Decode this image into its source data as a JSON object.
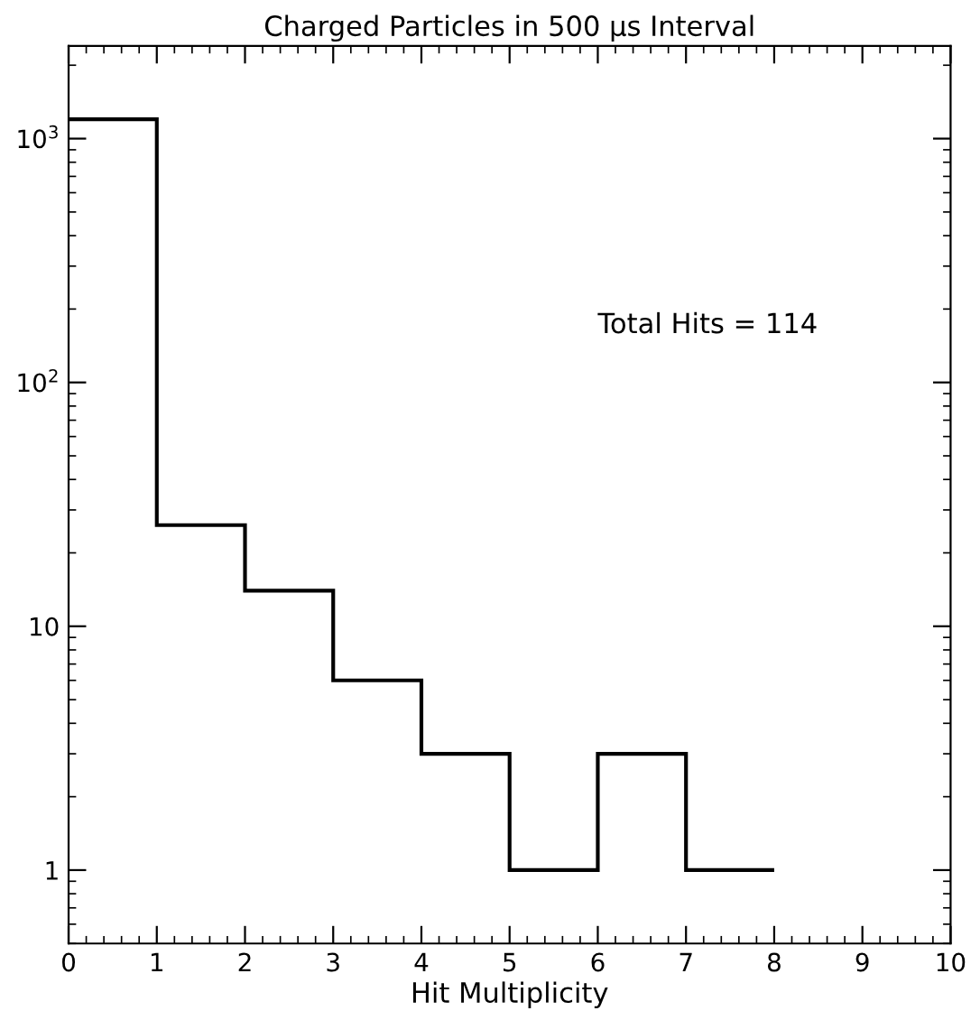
{
  "chart_data": {
    "type": "histogram",
    "title": "Charged Particles in 500 μs Interval",
    "xlabel": "Hit Multiplicity",
    "bins": [
      0,
      1,
      2,
      3,
      4,
      5,
      6,
      7,
      8
    ],
    "values": [
      1200,
      26,
      14,
      6,
      3,
      1,
      3,
      1
    ],
    "color": "#000000",
    "annotations": [
      "Total Hits = 114"
    ],
    "xlim": [
      0,
      10
    ],
    "xticks": [
      0,
      1,
      2,
      3,
      4,
      5,
      6,
      7,
      8,
      9,
      10
    ],
    "ylim": [
      0.5,
      2400
    ],
    "yticks": [
      1,
      10,
      {
        "value": 100,
        "label": "10$^{2}$"
      },
      {
        "value": 1000,
        "label": "10$^{3}$"
      }
    ],
    "log": true,
    "grid": false,
    "legend": false
  }
}
